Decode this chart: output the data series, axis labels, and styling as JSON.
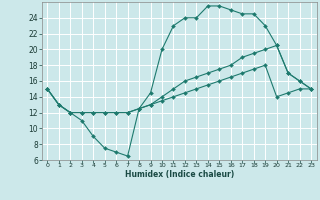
{
  "title": "",
  "xlabel": "Humidex (Indice chaleur)",
  "ylabel": "",
  "bg_color": "#cce8ea",
  "grid_color": "#ffffff",
  "line_color": "#1e7a6e",
  "xlim": [
    -0.5,
    23.5
  ],
  "ylim": [
    6,
    26
  ],
  "xticks": [
    0,
    1,
    2,
    3,
    4,
    5,
    6,
    7,
    8,
    9,
    10,
    11,
    12,
    13,
    14,
    15,
    16,
    17,
    18,
    19,
    20,
    21,
    22,
    23
  ],
  "yticks": [
    6,
    8,
    10,
    12,
    14,
    16,
    18,
    20,
    22,
    24
  ],
  "series": [
    {
      "x": [
        0,
        1,
        2,
        3,
        4,
        5,
        6,
        7,
        8,
        9,
        10,
        11,
        12,
        13,
        14,
        15,
        16,
        17,
        18,
        19,
        20,
        21,
        22,
        23
      ],
      "y": [
        15,
        13,
        12,
        11,
        9,
        7.5,
        7,
        6.5,
        12.5,
        14.5,
        20,
        23,
        24,
        24,
        25.5,
        25.5,
        25,
        24.5,
        24.5,
        23,
        20.5,
        17,
        16,
        15
      ]
    },
    {
      "x": [
        0,
        1,
        2,
        3,
        4,
        5,
        6,
        7,
        8,
        9,
        10,
        11,
        12,
        13,
        14,
        15,
        16,
        17,
        18,
        19,
        20,
        21,
        22,
        23
      ],
      "y": [
        15,
        13,
        12,
        12,
        12,
        12,
        12,
        12,
        12.5,
        13,
        14,
        15,
        16,
        16.5,
        17,
        17.5,
        18,
        19,
        19.5,
        20,
        20.5,
        17,
        16,
        15
      ]
    },
    {
      "x": [
        0,
        1,
        2,
        3,
        4,
        5,
        6,
        7,
        8,
        9,
        10,
        11,
        12,
        13,
        14,
        15,
        16,
        17,
        18,
        19,
        20,
        21,
        22,
        23
      ],
      "y": [
        15,
        13,
        12,
        12,
        12,
        12,
        12,
        12,
        12.5,
        13,
        13.5,
        14,
        14.5,
        15,
        15.5,
        16,
        16.5,
        17,
        17.5,
        18,
        14,
        14.5,
        15,
        15
      ]
    }
  ]
}
